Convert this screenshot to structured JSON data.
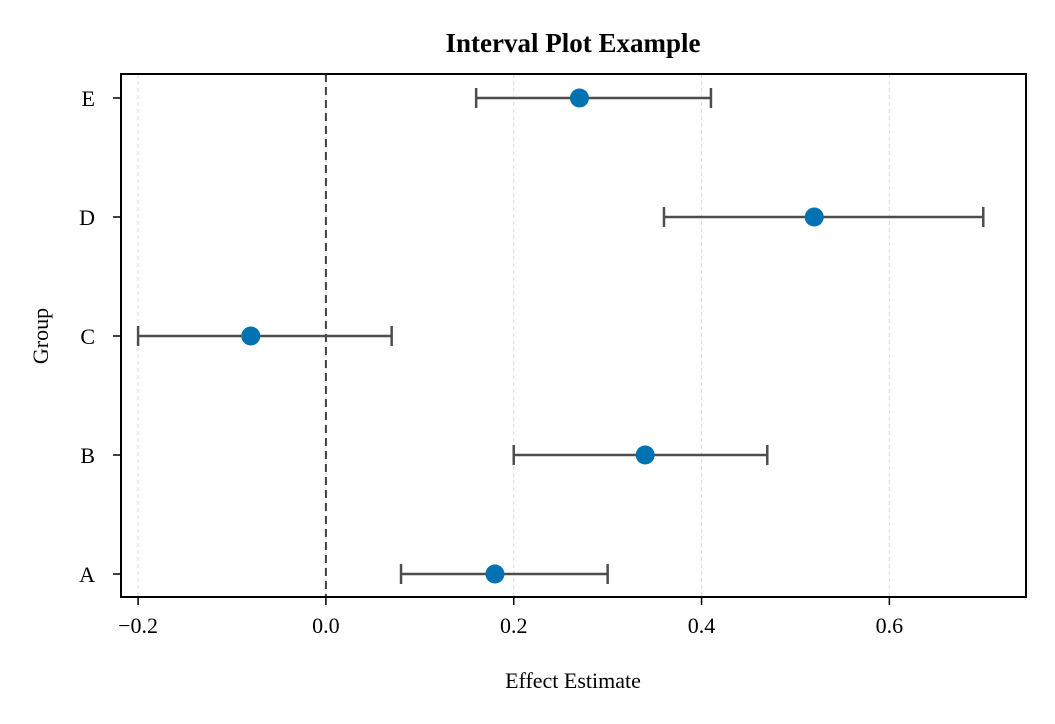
{
  "chart_data": {
    "type": "interval",
    "title": "Interval Plot Example",
    "xlabel": "Effect Estimate",
    "ylabel": "Group",
    "xlim": [
      -0.2182,
      0.7455
    ],
    "xticks": [
      -0.2,
      0.0,
      0.2,
      0.4,
      0.6
    ],
    "xtick_labels": [
      "−0.2",
      "0.0",
      "0.2",
      "0.4",
      "0.6"
    ],
    "categories": [
      "A",
      "B",
      "C",
      "D",
      "E"
    ],
    "estimates": [
      0.18,
      0.34,
      -0.08,
      0.52,
      0.27
    ],
    "lower": [
      0.08,
      0.2,
      -0.2,
      0.36,
      0.16
    ],
    "upper": [
      0.3,
      0.47,
      0.07,
      0.7,
      0.41
    ],
    "reference_line": 0.0,
    "grid": "x-only, dashed",
    "colors": {
      "point": "#0072b2",
      "errorbar": "#4d4d4d",
      "reference": "#404040",
      "grid": "#dddddd",
      "frame": "#000000"
    }
  }
}
